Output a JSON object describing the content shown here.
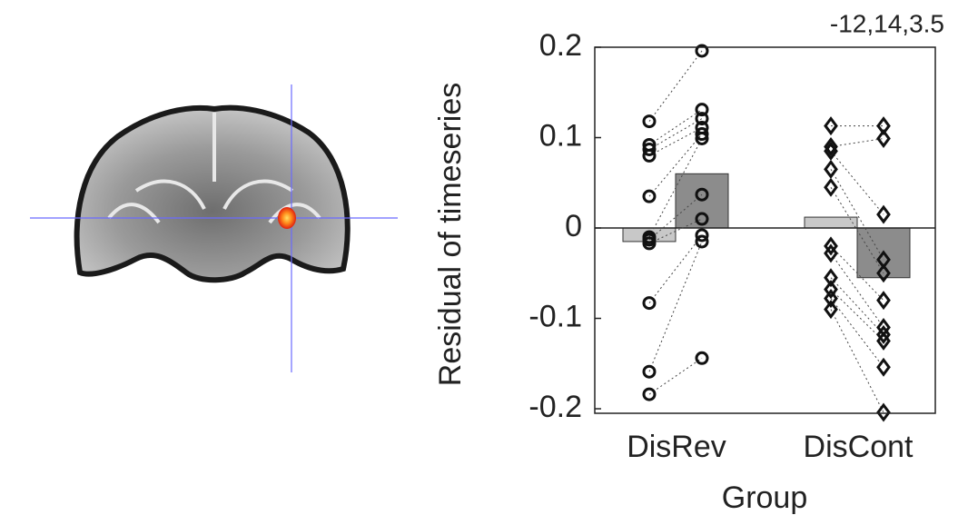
{
  "chart_data": {
    "type": "bar",
    "annotation": "-12,14,3.5",
    "ylabel": "Residual of timeseries",
    "xlabel": "Group",
    "categories": [
      "DisRev",
      "DisCont"
    ],
    "markers": [
      "circle",
      "diamond"
    ],
    "series": [
      {
        "color": "#c8c8c8",
        "values": [
          -0.015,
          0.012
        ],
        "points": [
          [
            0.118,
            0.092,
            0.087,
            0.08,
            0.035,
            -0.01,
            -0.013,
            -0.017,
            -0.083,
            -0.159,
            -0.184
          ],
          [
            0.113,
            0.09,
            0.085,
            0.065,
            0.045,
            -0.02,
            -0.028,
            -0.055,
            -0.068,
            -0.078,
            -0.09
          ]
        ]
      },
      {
        "color": "#8c8c8c",
        "values": [
          0.06,
          -0.055
        ],
        "points": [
          [
            0.196,
            0.131,
            0.121,
            0.111,
            0.104,
            0.099,
            0.037,
            0.01,
            -0.008,
            -0.015,
            -0.144
          ],
          [
            0.113,
            0.099,
            0.015,
            -0.035,
            -0.05,
            -0.08,
            -0.11,
            -0.118,
            -0.125,
            -0.154,
            -0.204
          ]
        ]
      }
    ],
    "ylim": [
      -0.205,
      0.2
    ],
    "yticks": [
      0.2,
      0.1,
      0,
      -0.1,
      -0.2
    ]
  }
}
